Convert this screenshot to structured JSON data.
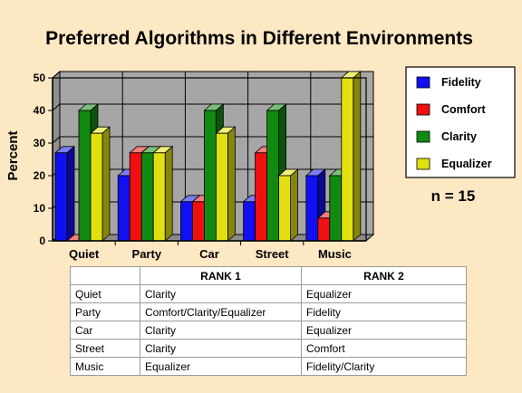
{
  "chart_data": {
    "type": "bar",
    "title": "Preferred Algorithms in Different Environments",
    "ylabel": "Percent",
    "xlabel": "",
    "ylim": [
      0,
      50
    ],
    "yticks": [
      0,
      10,
      20,
      30,
      40,
      50
    ],
    "categories": [
      "Quiet",
      "Party",
      "Car",
      "Street",
      "Music"
    ],
    "series": [
      {
        "name": "Fidelity",
        "color": "#1010f0",
        "values": [
          27,
          20,
          12,
          12,
          20
        ]
      },
      {
        "name": "Comfort",
        "color": "#f01010",
        "values": [
          0,
          27,
          12,
          27,
          7
        ]
      },
      {
        "name": "Clarity",
        "color": "#108a10",
        "values": [
          40,
          27,
          40,
          40,
          20
        ]
      },
      {
        "name": "Equalizer",
        "color": "#e0e010",
        "values": [
          33,
          27,
          33,
          20,
          50
        ]
      }
    ],
    "grid": true,
    "legend_position": "right",
    "annotation": "n = 15"
  },
  "table": {
    "headers": [
      "",
      "RANK 1",
      "RANK 2"
    ],
    "rows": [
      [
        "Quiet",
        "Clarity",
        "Equalizer"
      ],
      [
        "Party",
        "Comfort/Clarity/Equalizer",
        "Fidelity"
      ],
      [
        "Car",
        "Clarity",
        "Equalizer"
      ],
      [
        "Street",
        "Clarity",
        "Comfort"
      ],
      [
        "Music",
        "Equalizer",
        "Fidelity/Clarity"
      ]
    ]
  }
}
